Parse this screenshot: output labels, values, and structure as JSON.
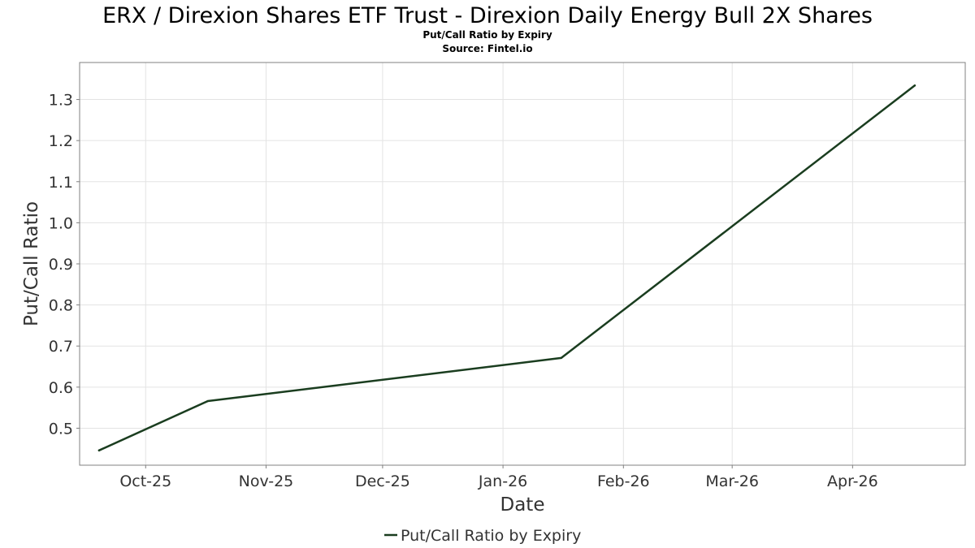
{
  "chart_data": {
    "type": "line",
    "title": "ERX / Direxion Shares ETF Trust - Direxion Daily Energy Bull 2X Shares",
    "subtitle": "Put/Call Ratio by Expiry",
    "source": "Source: Fintel.io",
    "xlabel": "Date",
    "ylabel": "Put/Call Ratio",
    "x_ticks": [
      {
        "label": "Oct-25",
        "date": "2025-10-01"
      },
      {
        "label": "Nov-25",
        "date": "2025-11-01"
      },
      {
        "label": "Dec-25",
        "date": "2025-12-01"
      },
      {
        "label": "Jan-26",
        "date": "2026-01-01"
      },
      {
        "label": "Feb-26",
        "date": "2026-02-01"
      },
      {
        "label": "Mar-26",
        "date": "2026-03-01"
      },
      {
        "label": "Apr-26",
        "date": "2026-04-01"
      }
    ],
    "xlim": [
      "2025-09-14",
      "2026-04-30"
    ],
    "y_ticks": [
      "0.5",
      "0.6",
      "0.7",
      "0.8",
      "0.9",
      "1.0",
      "1.1",
      "1.2",
      "1.3"
    ],
    "ylim": [
      0.41,
      1.39
    ],
    "grid": true,
    "legend_position": "bottom-center",
    "line_color": "#1a3d1f",
    "series": [
      {
        "name": "Put/Call Ratio by Expiry",
        "points": [
          {
            "x": "2025-09-19",
            "y": 0.446
          },
          {
            "x": "2025-10-17",
            "y": 0.566
          },
          {
            "x": "2026-01-16",
            "y": 0.671
          },
          {
            "x": "2026-04-17",
            "y": 1.334
          }
        ]
      }
    ]
  }
}
